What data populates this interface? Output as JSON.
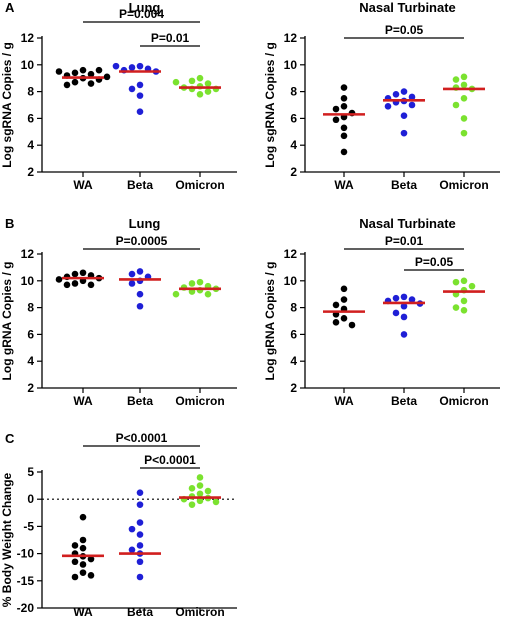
{
  "colors": {
    "WA": "#000000",
    "Beta": "#1f1fd6",
    "Omicron": "#7be22f",
    "mean": "#d11f1f"
  },
  "chart_data": [
    {
      "panel_letter": "A",
      "type": "scatter",
      "title": "Lung",
      "ylabel": "Log sgRNA Copies / g",
      "ylim": [
        2,
        12
      ],
      "yticks": [
        2,
        4,
        6,
        8,
        10,
        12
      ],
      "categories": [
        "WA",
        "Beta",
        "Omicron"
      ],
      "series": [
        {
          "group": "WA",
          "values": [
            9.6,
            9.4,
            9.3,
            9.2,
            9.0,
            8.9,
            8.7,
            8.6,
            9.6,
            9.5,
            9.1,
            8.5
          ],
          "mean": 9.05
        },
        {
          "group": "Beta",
          "values": [
            9.9,
            9.8,
            9.7,
            9.6,
            9.5,
            8.5,
            8.2,
            7.7,
            6.5,
            9.9
          ],
          "mean": 9.5
        },
        {
          "group": "Omicron",
          "values": [
            9.0,
            8.8,
            8.6,
            8.4,
            8.3,
            8.2,
            8.0,
            7.8,
            8.2,
            8.7
          ],
          "mean": 8.3
        }
      ],
      "comparisons": [
        {
          "from": "WA",
          "to": "Omicron",
          "label": "P=0.004"
        },
        {
          "from": "Beta",
          "to": "Omicron",
          "label": "P=0.01"
        }
      ]
    },
    {
      "panel_letter": "",
      "type": "scatter",
      "title": "Nasal Turbinate",
      "ylabel": "Log sgRNA Copies / g",
      "ylim": [
        2,
        12
      ],
      "yticks": [
        2,
        4,
        6,
        8,
        10,
        12
      ],
      "categories": [
        "WA",
        "Beta",
        "Omicron"
      ],
      "series": [
        {
          "group": "WA",
          "values": [
            8.3,
            7.5,
            6.9,
            6.7,
            6.4,
            6.1,
            5.9,
            5.3,
            4.7,
            3.5
          ],
          "mean": 6.3
        },
        {
          "group": "Beta",
          "values": [
            8.0,
            7.8,
            7.6,
            7.5,
            7.3,
            7.2,
            7.0,
            6.9,
            6.2,
            4.9
          ],
          "mean": 7.35
        },
        {
          "group": "Omicron",
          "values": [
            9.1,
            8.9,
            8.5,
            8.3,
            8.2,
            7.5,
            7.0,
            6.0,
            4.9
          ],
          "mean": 8.2
        }
      ],
      "comparisons": [
        {
          "from": "WA",
          "to": "Omicron",
          "label": "P=0.05"
        }
      ]
    },
    {
      "panel_letter": "B",
      "type": "scatter",
      "title": "Lung",
      "ylabel": "Log gRNA Copies / g",
      "ylim": [
        2,
        12
      ],
      "yticks": [
        2,
        4,
        6,
        8,
        10,
        12
      ],
      "categories": [
        "WA",
        "Beta",
        "Omicron"
      ],
      "series": [
        {
          "group": "WA",
          "values": [
            10.6,
            10.5,
            10.4,
            10.3,
            10.2,
            10.1,
            10.0,
            9.8,
            9.7,
            9.7
          ],
          "mean": 10.2
        },
        {
          "group": "Beta",
          "values": [
            10.7,
            10.5,
            10.3,
            10.0,
            9.8,
            9.0,
            8.1
          ],
          "mean": 10.1
        },
        {
          "group": "Omicron",
          "values": [
            9.9,
            9.8,
            9.6,
            9.5,
            9.4,
            9.3,
            9.2,
            9.0,
            9.0
          ],
          "mean": 9.4
        }
      ],
      "comparisons": [
        {
          "from": "WA",
          "to": "Omicron",
          "label": "P=0.0005"
        }
      ]
    },
    {
      "panel_letter": "",
      "type": "scatter",
      "title": "Nasal Turbinate",
      "ylabel": "Log gRNA Copies / g",
      "ylim": [
        2,
        12
      ],
      "yticks": [
        2,
        4,
        6,
        8,
        10,
        12
      ],
      "categories": [
        "WA",
        "Beta",
        "Omicron"
      ],
      "series": [
        {
          "group": "WA",
          "values": [
            9.4,
            8.6,
            8.2,
            7.9,
            7.5,
            7.2,
            6.9,
            6.7
          ],
          "mean": 7.7
        },
        {
          "group": "Beta",
          "values": [
            8.8,
            8.7,
            8.6,
            8.5,
            8.3,
            8.1,
            7.6,
            7.3,
            6.0
          ],
          "mean": 8.35
        },
        {
          "group": "Omicron",
          "values": [
            10.0,
            9.9,
            9.6,
            9.3,
            9.0,
            8.5,
            8.0,
            7.8
          ],
          "mean": 9.2
        }
      ],
      "comparisons": [
        {
          "from": "WA",
          "to": "Omicron",
          "label": "P=0.01"
        },
        {
          "from": "Beta",
          "to": "Omicron",
          "label": "P=0.05"
        }
      ]
    },
    {
      "panel_letter": "C",
      "type": "scatter",
      "title": "",
      "ylabel": "% Body Weight  Change",
      "ylim": [
        -20,
        5
      ],
      "yticks": [
        -20,
        -15,
        -10,
        -5,
        0,
        5
      ],
      "categories": [
        "WA",
        "Beta",
        "Omicron"
      ],
      "zero_line": true,
      "series": [
        {
          "group": "WA",
          "values": [
            -3.3,
            -7.5,
            -8.5,
            -9.0,
            -10.0,
            -10.5,
            -11.0,
            -11.5,
            -12.0,
            -13.5,
            -14.3,
            -14.0
          ],
          "mean": -10.4
        },
        {
          "group": "Beta",
          "values": [
            1.2,
            -1.0,
            -4.3,
            -5.5,
            -6.5,
            -8.5,
            -9.3,
            -10.0,
            -11.5,
            -14.3
          ],
          "mean": -10.0
        },
        {
          "group": "Omicron",
          "values": [
            4.0,
            2.5,
            2.0,
            1.5,
            1.0,
            0.5,
            0.2,
            0.0,
            -0.3,
            -0.5,
            -1.0
          ],
          "mean": 0.3
        }
      ],
      "comparisons": [
        {
          "from": "WA",
          "to": "Omicron",
          "label": "P<0.0001"
        },
        {
          "from": "Beta",
          "to": "Omicron",
          "label": "P<0.0001"
        }
      ]
    }
  ]
}
